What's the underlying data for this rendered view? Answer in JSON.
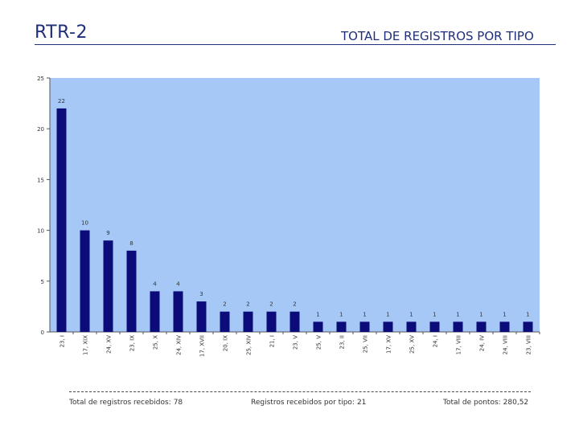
{
  "header": {
    "title": "RTR-2",
    "subtitle": "TOTAL DE REGISTROS POR TIPO"
  },
  "colors": {
    "plot_background": "#a5c8f7",
    "bar": "#0b0b7a",
    "text": "#1f2f7a"
  },
  "chart_data": {
    "type": "bar",
    "categories": [
      "23, I",
      "17, XIX",
      "24, XV",
      "23, IX",
      "25, X",
      "24, XIV",
      "17, XVII",
      "20, IX",
      "25, XIV",
      "21, I",
      "23, V",
      "25, V",
      "23, II",
      "25, VII",
      "17, XV",
      "25, XV",
      "24, I",
      "17, VIII",
      "24, IV",
      "24, VIII",
      "23, VIII"
    ],
    "values": [
      22,
      10,
      9,
      8,
      4,
      4,
      3,
      2,
      2,
      2,
      2,
      1,
      1,
      1,
      1,
      1,
      1,
      1,
      1,
      1,
      1
    ],
    "ylim": [
      0,
      25
    ],
    "yticks": [
      0,
      5,
      10,
      15,
      20,
      25
    ],
    "ytick_labels": [
      "0",
      "5",
      "10",
      "15",
      "20",
      "25"
    ],
    "data_labels": true,
    "grid": false,
    "legend": "none"
  },
  "footer": {
    "total_label": "Total de registros recebidos:",
    "total_value": "78",
    "types_label": "Registros recebidos por tipo:",
    "types_value": "21",
    "points_label": "Total de pontos:",
    "points_value": "280,52"
  }
}
